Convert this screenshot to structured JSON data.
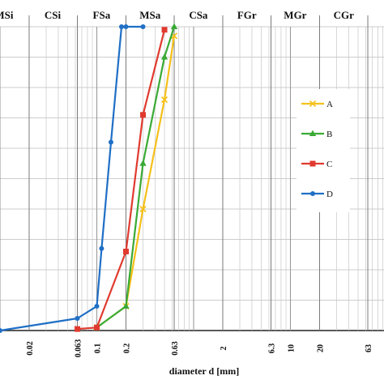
{
  "chart_data": {
    "type": "line",
    "xlabel": "diameter d [mm]",
    "x_scale": "log",
    "xlim": [
      0.01,
      100
    ],
    "ylim": [
      0,
      100
    ],
    "grid": true,
    "legend_position": "right",
    "x_tick_labels": [
      {
        "value": 0.02,
        "label": "0.02"
      },
      {
        "value": 0.063,
        "label": "0.063"
      },
      {
        "value": 0.1,
        "label": "0.1"
      },
      {
        "value": 0.2,
        "label": "0.2"
      },
      {
        "value": 0.63,
        "label": "0.63"
      },
      {
        "value": 2,
        "label": "2"
      },
      {
        "value": 6.3,
        "label": "6.3"
      },
      {
        "value": 10,
        "label": "10"
      },
      {
        "value": 20,
        "label": "20"
      },
      {
        "value": 63,
        "label": "63"
      }
    ],
    "soil_classes": [
      {
        "label": "MSi",
        "center": 0.011
      },
      {
        "label": "CSi",
        "center": 0.035
      },
      {
        "label": "FSa",
        "center": 0.112
      },
      {
        "label": "MSa",
        "center": 0.355
      },
      {
        "label": "CSa",
        "center": 1.12
      },
      {
        "label": "FGr",
        "center": 3.55
      },
      {
        "label": "MGr",
        "center": 11.2
      },
      {
        "label": "CGr",
        "center": 35.5
      }
    ],
    "series": [
      {
        "name": "A",
        "color": "#f5c01a",
        "marker": "x",
        "points": [
          [
            0.1,
            1
          ],
          [
            0.2,
            8
          ],
          [
            0.3,
            40
          ],
          [
            0.5,
            76
          ],
          [
            0.63,
            97
          ]
        ]
      },
      {
        "name": "B",
        "color": "#3aaa35",
        "marker": "triangle",
        "points": [
          [
            0.1,
            1
          ],
          [
            0.2,
            8
          ],
          [
            0.3,
            55
          ],
          [
            0.5,
            90
          ],
          [
            0.63,
            100
          ]
        ]
      },
      {
        "name": "C",
        "color": "#e03a2f",
        "marker": "square",
        "points": [
          [
            0.063,
            0.5
          ],
          [
            0.1,
            1
          ],
          [
            0.2,
            26
          ],
          [
            0.3,
            71
          ],
          [
            0.5,
            99
          ]
        ]
      },
      {
        "name": "D",
        "color": "#1f6fc5",
        "marker": "circle",
        "points": [
          [
            0.01,
            0
          ],
          [
            0.063,
            4
          ],
          [
            0.1,
            8
          ],
          [
            0.112,
            27
          ],
          [
            0.14,
            62
          ],
          [
            0.18,
            100
          ],
          [
            0.2,
            100
          ],
          [
            0.3,
            100
          ]
        ]
      }
    ]
  }
}
